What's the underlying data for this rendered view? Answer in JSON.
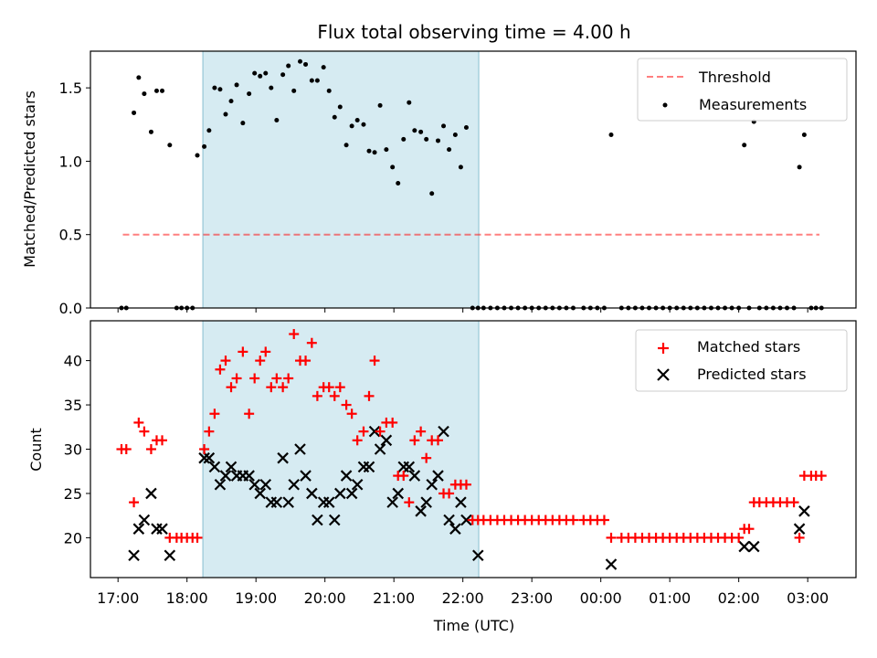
{
  "chart_data": {
    "type": "scatter",
    "title": "Flux total observing time = 4.00 h",
    "xlabel": "Time (UTC)",
    "x_unit": "hours since 17:00 UTC",
    "xlim": [
      -0.4,
      10.7
    ],
    "x_ticks": [
      0,
      1,
      2,
      3,
      4,
      5,
      6,
      7,
      8,
      9,
      10
    ],
    "x_tick_labels": [
      "17:00",
      "18:00",
      "19:00",
      "20:00",
      "21:00",
      "22:00",
      "23:00",
      "00:00",
      "01:00",
      "02:00",
      "03:00"
    ],
    "shaded_span": [
      1.23,
      5.23
    ],
    "shade_color": "#add8e6",
    "top": {
      "ylabel": "Matched/Predicted stars",
      "ylim": [
        0,
        1.75
      ],
      "y_ticks": [
        0.0,
        0.5,
        1.0,
        1.5
      ],
      "y_tick_labels": [
        "0.0",
        "0.5",
        "1.0",
        "1.5"
      ],
      "threshold": {
        "label": "Threshold",
        "y": 0.5,
        "x_range": [
          0.07,
          10.17
        ],
        "color": "#ff0000"
      },
      "measurements": {
        "label": "Measurements",
        "color": "#000000",
        "x": [
          0.05,
          0.12,
          0.23,
          0.3,
          0.38,
          0.48,
          0.56,
          0.64,
          0.75,
          0.85,
          0.92,
          1.0,
          1.08,
          1.15,
          1.25,
          1.32,
          1.4,
          1.48,
          1.56,
          1.64,
          1.72,
          1.81,
          1.9,
          1.98,
          2.06,
          2.14,
          2.22,
          2.3,
          2.39,
          2.47,
          2.55,
          2.64,
          2.72,
          2.81,
          2.89,
          2.98,
          3.06,
          3.14,
          3.22,
          3.31,
          3.39,
          3.47,
          3.56,
          3.64,
          3.72,
          3.8,
          3.89,
          3.98,
          4.06,
          4.14,
          4.22,
          4.3,
          4.39,
          4.47,
          4.55,
          4.64,
          4.72,
          4.8,
          4.89,
          4.97,
          5.05,
          5.14,
          5.22,
          5.3,
          5.4,
          5.5,
          5.6,
          5.7,
          5.8,
          5.9,
          6.0,
          6.1,
          6.2,
          6.3,
          6.4,
          6.5,
          6.6,
          6.75,
          6.85,
          6.95,
          7.05,
          7.15,
          7.3,
          7.4,
          7.5,
          7.6,
          7.7,
          7.8,
          7.9,
          8.0,
          8.1,
          8.2,
          8.3,
          8.4,
          8.5,
          8.6,
          8.7,
          8.8,
          8.9,
          9.0,
          9.08,
          9.15,
          9.22,
          9.3,
          9.4,
          9.5,
          9.6,
          9.7,
          9.8,
          9.88,
          9.95,
          10.05,
          10.12,
          10.2
        ],
        "y": [
          0.0,
          0.0,
          1.33,
          1.57,
          1.46,
          1.2,
          1.48,
          1.48,
          1.11,
          0.0,
          0.0,
          0.0,
          0.0,
          1.04,
          1.1,
          1.21,
          1.5,
          1.49,
          1.32,
          1.41,
          1.52,
          1.26,
          1.46,
          1.6,
          1.58,
          1.6,
          1.5,
          1.28,
          1.59,
          1.65,
          1.48,
          1.68,
          1.66,
          1.55,
          1.55,
          1.64,
          1.48,
          1.3,
          1.37,
          1.11,
          1.24,
          1.28,
          1.25,
          1.07,
          1.06,
          1.38,
          1.08,
          0.96,
          0.85,
          1.15,
          1.4,
          1.21,
          1.2,
          1.15,
          0.78,
          1.14,
          1.24,
          1.08,
          1.18,
          0.96,
          1.23,
          0.0,
          0.0,
          0.0,
          0.0,
          0.0,
          0.0,
          0.0,
          0.0,
          0.0,
          0.0,
          0.0,
          0.0,
          0.0,
          0.0,
          0.0,
          0.0,
          0.0,
          0.0,
          0.0,
          0.0,
          1.18,
          0.0,
          0.0,
          0.0,
          0.0,
          0.0,
          0.0,
          0.0,
          0.0,
          0.0,
          0.0,
          0.0,
          0.0,
          0.0,
          0.0,
          0.0,
          0.0,
          0.0,
          0.0,
          1.11,
          0.0,
          1.27,
          0.0,
          0.0,
          0.0,
          0.0,
          0.0,
          0.0,
          0.96,
          1.18,
          0.0,
          0.0,
          0.0
        ]
      }
    },
    "bottom": {
      "ylabel": "Count",
      "ylim": [
        15.5,
        44.5
      ],
      "y_ticks": [
        20,
        25,
        30,
        35,
        40
      ],
      "y_tick_labels": [
        "20",
        "25",
        "30",
        "35",
        "40"
      ],
      "matched": {
        "label": "Matched stars",
        "color": "#ff0000",
        "x": [
          0.05,
          0.12,
          0.23,
          0.3,
          0.38,
          0.48,
          0.56,
          0.64,
          0.75,
          0.85,
          0.92,
          1.0,
          1.08,
          1.15,
          1.25,
          1.32,
          1.4,
          1.48,
          1.56,
          1.64,
          1.72,
          1.81,
          1.9,
          1.98,
          2.06,
          2.14,
          2.22,
          2.3,
          2.39,
          2.47,
          2.55,
          2.64,
          2.72,
          2.81,
          2.89,
          2.98,
          3.06,
          3.14,
          3.22,
          3.31,
          3.39,
          3.47,
          3.56,
          3.64,
          3.72,
          3.8,
          3.89,
          3.98,
          4.06,
          4.14,
          4.22,
          4.3,
          4.39,
          4.47,
          4.55,
          4.64,
          4.72,
          4.8,
          4.89,
          4.97,
          5.05,
          5.14,
          5.22,
          5.3,
          5.4,
          5.5,
          5.6,
          5.7,
          5.8,
          5.9,
          6.0,
          6.1,
          6.2,
          6.3,
          6.4,
          6.5,
          6.6,
          6.75,
          6.85,
          6.95,
          7.05,
          7.15,
          7.3,
          7.4,
          7.5,
          7.6,
          7.7,
          7.8,
          7.9,
          8.0,
          8.1,
          8.2,
          8.3,
          8.4,
          8.5,
          8.6,
          8.7,
          8.8,
          8.9,
          9.0,
          9.08,
          9.15,
          9.22,
          9.3,
          9.4,
          9.5,
          9.6,
          9.7,
          9.8,
          9.88,
          9.95,
          10.05,
          10.12,
          10.2
        ],
        "y": [
          30,
          30,
          24,
          33,
          32,
          30,
          31,
          31,
          20,
          20,
          20,
          20,
          20,
          20,
          30,
          32,
          34,
          39,
          40,
          37,
          38,
          41,
          34,
          38,
          40,
          41,
          37,
          38,
          37,
          38,
          43,
          40,
          40,
          42,
          36,
          37,
          37,
          36,
          37,
          35,
          34,
          31,
          32,
          36,
          40,
          32,
          33,
          33,
          27,
          27,
          24,
          31,
          32,
          29,
          31,
          31,
          25,
          25,
          26,
          26,
          26,
          22,
          22,
          22,
          22,
          22,
          22,
          22,
          22,
          22,
          22,
          22,
          22,
          22,
          22,
          22,
          22,
          22,
          22,
          22,
          22,
          20,
          20,
          20,
          20,
          20,
          20,
          20,
          20,
          20,
          20,
          20,
          20,
          20,
          20,
          20,
          20,
          20,
          20,
          20,
          21,
          21,
          24,
          24,
          24,
          24,
          24,
          24,
          24,
          20,
          27,
          27,
          27,
          27
        ]
      },
      "predicted": {
        "label": "Predicted stars",
        "color": "#000000",
        "x": [
          0.23,
          0.3,
          0.38,
          0.48,
          0.56,
          0.64,
          0.75,
          1.25,
          1.32,
          1.4,
          1.48,
          1.56,
          1.64,
          1.72,
          1.81,
          1.9,
          1.98,
          2.06,
          2.14,
          2.22,
          2.3,
          2.39,
          2.47,
          2.55,
          2.64,
          2.72,
          2.81,
          2.89,
          2.98,
          3.06,
          3.14,
          3.22,
          3.31,
          3.39,
          3.47,
          3.56,
          3.64,
          3.72,
          3.8,
          3.89,
          3.98,
          4.06,
          4.14,
          4.22,
          4.3,
          4.39,
          4.47,
          4.55,
          4.64,
          4.72,
          4.8,
          4.89,
          4.97,
          5.05,
          5.22,
          7.15,
          9.08,
          9.22,
          9.88,
          9.95
        ],
        "y": [
          18,
          21,
          22,
          25,
          21,
          21,
          18,
          29,
          29,
          28,
          26,
          27,
          28,
          27,
          27,
          27,
          26,
          25,
          26,
          24,
          24,
          29,
          24,
          26,
          30,
          27,
          25,
          22,
          24,
          24,
          22,
          25,
          27,
          25,
          26,
          28,
          28,
          32,
          30,
          31,
          24,
          25,
          28,
          28,
          27,
          23,
          24,
          26,
          27,
          32,
          22,
          21,
          24,
          22,
          18,
          17,
          19,
          19,
          21,
          23
        ]
      }
    }
  }
}
